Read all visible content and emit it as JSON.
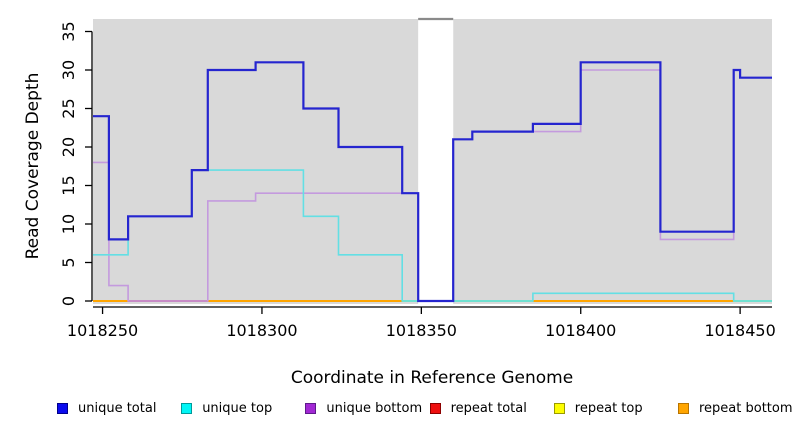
{
  "figure": {
    "xlabel": "Coordinate in Reference Genome",
    "ylabel": "Read Coverage Depth",
    "background_color": "#ffffff",
    "plot_background_color": "#d9d9d9",
    "gap_band_color": "#ffffff",
    "gap_band_cap_color": "#8a8a8a",
    "axis_color": "#000000"
  },
  "chart_data": {
    "type": "line",
    "style": "step",
    "title": "",
    "xlabel": "Coordinate in Reference Genome",
    "ylabel": "Read Coverage Depth",
    "xlim": [
      1018247,
      1018460
    ],
    "ylim": [
      0,
      35
    ],
    "x_ticks": [
      "1018250",
      "1018300",
      "1018350",
      "1018400",
      "1018450"
    ],
    "x_tick_values": [
      1018250,
      1018300,
      1018350,
      1018400,
      1018450
    ],
    "y_ticks": [
      "0",
      "5",
      "10",
      "15",
      "20",
      "25",
      "30",
      "35"
    ],
    "y_tick_values": [
      0,
      5,
      10,
      15,
      20,
      25,
      30,
      35
    ],
    "grid": false,
    "legend_position": "bottom",
    "gap_region": {
      "start": 1018349,
      "end": 1018360
    },
    "series": [
      {
        "name": "unique total",
        "line_color": "#2525cf",
        "line_width": 2.2,
        "steps": [
          [
            1018247,
            24
          ],
          [
            1018252,
            8
          ],
          [
            1018258,
            11
          ],
          [
            1018278,
            17
          ],
          [
            1018283,
            30
          ],
          [
            1018298,
            31
          ],
          [
            1018313,
            25
          ],
          [
            1018324,
            20
          ],
          [
            1018344,
            14
          ],
          [
            1018349,
            0
          ],
          [
            1018360,
            21
          ],
          [
            1018366,
            22
          ],
          [
            1018385,
            23
          ],
          [
            1018400,
            31
          ],
          [
            1018425,
            9
          ],
          [
            1018448,
            30
          ],
          [
            1018450,
            29
          ],
          [
            1018460,
            29
          ]
        ]
      },
      {
        "name": "unique top",
        "line_color": "#63dfe4",
        "line_width": 1.6,
        "steps": [
          [
            1018247,
            6
          ],
          [
            1018258,
            11
          ],
          [
            1018278,
            17
          ],
          [
            1018313,
            11
          ],
          [
            1018324,
            6
          ],
          [
            1018344,
            0
          ],
          [
            1018385,
            1
          ],
          [
            1018448,
            0
          ],
          [
            1018460,
            0
          ]
        ]
      },
      {
        "name": "unique bottom",
        "line_color": "#c49ade",
        "line_width": 1.6,
        "steps": [
          [
            1018247,
            18
          ],
          [
            1018252,
            2
          ],
          [
            1018258,
            0
          ],
          [
            1018283,
            13
          ],
          [
            1018298,
            14
          ],
          [
            1018349,
            0
          ],
          [
            1018360,
            21
          ],
          [
            1018366,
            22
          ],
          [
            1018400,
            30
          ],
          [
            1018425,
            8
          ],
          [
            1018448,
            30
          ],
          [
            1018450,
            29
          ],
          [
            1018460,
            29
          ]
        ]
      },
      {
        "name": "repeat total",
        "line_color": "#dd1111",
        "line_width": 1.6,
        "steps": [
          [
            1018247,
            0
          ],
          [
            1018460,
            0
          ]
        ]
      },
      {
        "name": "repeat top",
        "line_color": "#f5f500",
        "line_width": 1.6,
        "steps": [
          [
            1018247,
            0
          ],
          [
            1018460,
            0
          ]
        ]
      },
      {
        "name": "repeat bottom",
        "line_color": "#ffa500",
        "line_width": 2,
        "steps": [
          [
            1018247,
            0
          ],
          [
            1018460,
            0
          ]
        ]
      }
    ],
    "zero_line_tint_segments": [
      {
        "from": 1018258,
        "to": 1018283,
        "color": "#d06080"
      },
      {
        "from": 1018344,
        "to": 1018349,
        "color": "#97e097"
      },
      {
        "from": 1018360,
        "to": 1018385,
        "color": "#97e097"
      },
      {
        "from": 1018448,
        "to": 1018460,
        "color": "#97e097"
      }
    ],
    "legend_items": [
      {
        "label": "unique total",
        "fill": "#0b0bee",
        "border": "#00008b"
      },
      {
        "label": "unique top",
        "fill": "#00f5f5",
        "border": "#009a9a"
      },
      {
        "label": "unique bottom",
        "fill": "#a228d4",
        "border": "#5e1a8b"
      },
      {
        "label": "repeat total",
        "fill": "#ee0f0f",
        "border": "#8b0000"
      },
      {
        "label": "repeat top",
        "fill": "#fdfd00",
        "border": "#9a9a00"
      },
      {
        "label": "repeat bottom",
        "fill": "#ffa500",
        "border": "#b87400"
      }
    ]
  }
}
